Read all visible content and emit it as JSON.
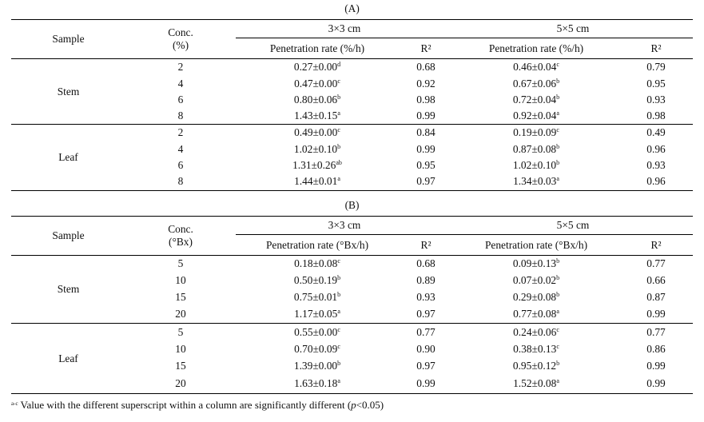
{
  "panels": [
    {
      "label": "(A)",
      "header": {
        "sample": "Sample",
        "conc_line1": "Conc.",
        "conc_line2": "(%)",
        "group1": "3×3 cm",
        "group2": "5×5 cm",
        "rate": "Penetration rate (%/h)",
        "r2": "R²"
      },
      "groups": [
        {
          "sample": "Stem",
          "rows": [
            {
              "conc": "2",
              "r1": "0.27±0.00",
              "s1": "d",
              "q1": "0.68",
              "r2": "0.46±0.04",
              "s2": "c",
              "q2": "0.79"
            },
            {
              "conc": "4",
              "r1": "0.47±0.00",
              "s1": "c",
              "q1": "0.92",
              "r2": "0.67±0.06",
              "s2": "b",
              "q2": "0.95"
            },
            {
              "conc": "6",
              "r1": "0.80±0.06",
              "s1": "b",
              "q1": "0.98",
              "r2": "0.72±0.04",
              "s2": "b",
              "q2": "0.93"
            },
            {
              "conc": "8",
              "r1": "1.43±0.15",
              "s1": "a",
              "q1": "0.99",
              "r2": "0.92±0.04",
              "s2": "a",
              "q2": "0.98"
            }
          ]
        },
        {
          "sample": "Leaf",
          "rows": [
            {
              "conc": "2",
              "r1": "0.49±0.00",
              "s1": "c",
              "q1": "0.84",
              "r2": "0.19±0.09",
              "s2": "c",
              "q2": "0.49"
            },
            {
              "conc": "4",
              "r1": "1.02±0.10",
              "s1": "b",
              "q1": "0.99",
              "r2": "0.87±0.08",
              "s2": "b",
              "q2": "0.96"
            },
            {
              "conc": "6",
              "r1": "1.31±0.26",
              "s1": "ab",
              "q1": "0.95",
              "r2": "1.02±0.10",
              "s2": "b",
              "q2": "0.93"
            },
            {
              "conc": "8",
              "r1": "1.44±0.01",
              "s1": "a",
              "q1": "0.97",
              "r2": "1.34±0.03",
              "s2": "a",
              "q2": "0.96"
            }
          ]
        }
      ]
    },
    {
      "label": "(B)",
      "header": {
        "sample": "Sample",
        "conc_line1": "Conc.",
        "conc_line2": "(°Bx)",
        "group1": "3×3 cm",
        "group2": "5×5 cm",
        "rate": "Penetration rate (°Bx/h)",
        "r2": "R²"
      },
      "groups": [
        {
          "sample": "Stem",
          "rows": [
            {
              "conc": "5",
              "r1": "0.18±0.08",
              "s1": "c",
              "q1": "0.68",
              "r2": "0.09±0.13",
              "s2": "b",
              "q2": "0.77"
            },
            {
              "conc": "10",
              "r1": "0.50±0.19",
              "s1": "b",
              "q1": "0.89",
              "r2": "0.07±0.02",
              "s2": "b",
              "q2": "0.66"
            },
            {
              "conc": "15",
              "r1": "0.75±0.01",
              "s1": "b",
              "q1": "0.93",
              "r2": "0.29±0.08",
              "s2": "b",
              "q2": "0.87"
            },
            {
              "conc": "20",
              "r1": "1.17±0.05",
              "s1": "a",
              "q1": "0.97",
              "r2": "0.77±0.08",
              "s2": "a",
              "q2": "0.99"
            }
          ]
        },
        {
          "sample": "Leaf",
          "rows": [
            {
              "conc": "5",
              "r1": "0.55±0.00",
              "s1": "c",
              "q1": "0.77",
              "r2": "0.24±0.06",
              "s2": "c",
              "q2": "0.77"
            },
            {
              "conc": "10",
              "r1": "0.70±0.09",
              "s1": "c",
              "q1": "0.90",
              "r2": "0.38±0.13",
              "s2": "c",
              "q2": "0.86"
            },
            {
              "conc": "15",
              "r1": "1.39±0.00",
              "s1": "b",
              "q1": "0.97",
              "r2": "0.95±0.12",
              "s2": "b",
              "q2": "0.99"
            },
            {
              "conc": "20",
              "r1": "1.63±0.18",
              "s1": "a",
              "q1": "0.99",
              "r2": "1.52±0.08",
              "s2": "a",
              "q2": "0.99"
            }
          ]
        }
      ]
    }
  ],
  "footnote": {
    "sup": "a-c",
    "text": " Value with the different superscript within a column are significantly different (",
    "p": "p",
    "tail": "<0.05)"
  }
}
